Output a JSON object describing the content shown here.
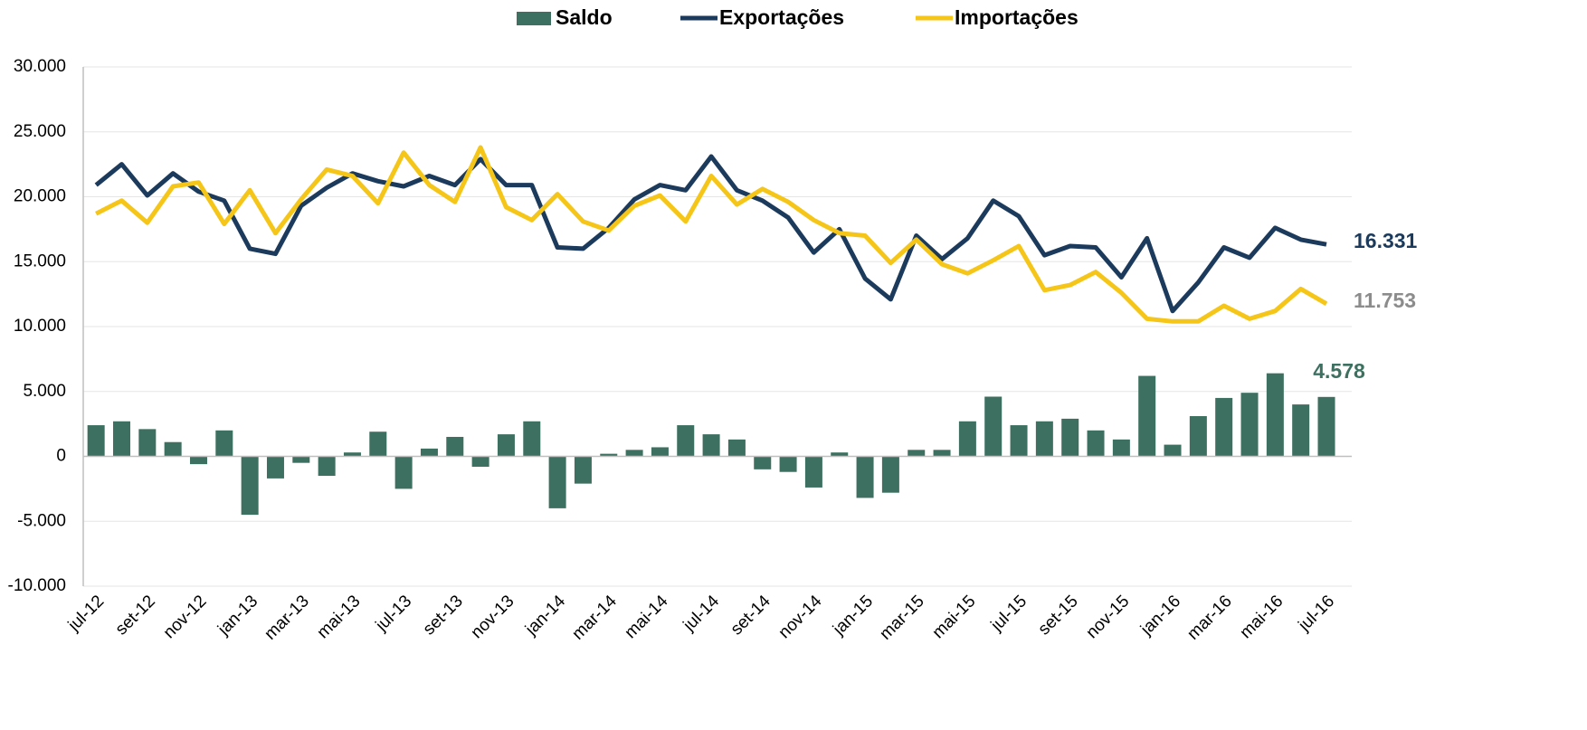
{
  "chart_data": {
    "type": "bar-line",
    "categories": [
      "jul-12",
      null,
      "set-12",
      null,
      "nov-12",
      null,
      "jan-13",
      null,
      "mar-13",
      null,
      "mai-13",
      null,
      "jul-13",
      null,
      "set-13",
      null,
      "nov-13",
      null,
      "jan-14",
      null,
      "mar-14",
      null,
      "mai-14",
      null,
      "jul-14",
      null,
      "set-14",
      null,
      "nov-14",
      null,
      "jan-15",
      null,
      "mar-15",
      null,
      "mai-15",
      null,
      "jul-15",
      null,
      "set-15",
      null,
      "nov-15",
      null,
      "jan-16",
      null,
      "mar-16",
      null,
      "mai-16",
      null,
      "jul-16"
    ],
    "series": [
      {
        "name": "Saldo",
        "type": "bar",
        "color": "#3d7060",
        "values": [
          2400,
          2700,
          2100,
          1100,
          -600,
          2000,
          -4500,
          -1700,
          -500,
          -1500,
          300,
          1900,
          -2500,
          600,
          1500,
          -800,
          1700,
          2700,
          -4000,
          -2100,
          200,
          500,
          700,
          2400,
          1700,
          1300,
          -1000,
          -1200,
          -2400,
          300,
          -3200,
          -2800,
          500,
          500,
          2700,
          4600,
          2400,
          2700,
          2900,
          2000,
          1300,
          6200,
          900,
          3100,
          4500,
          4900,
          6400,
          4000,
          4578
        ],
        "value_labels": [
          null,
          null,
          null,
          null,
          null,
          null,
          null,
          null,
          null,
          null,
          null,
          null,
          null,
          null,
          null,
          null,
          null,
          null,
          null,
          null,
          null,
          null,
          null,
          null,
          null,
          null,
          null,
          null,
          null,
          null,
          null,
          null,
          null,
          null,
          null,
          null,
          null,
          null,
          null,
          null,
          null,
          null,
          null,
          null,
          null,
          null,
          null,
          null,
          "4.578"
        ]
      },
      {
        "name": "Exportações",
        "type": "line",
        "color": "#1b3a5c",
        "values": [
          20900,
          22500,
          20100,
          21800,
          20400,
          19700,
          16000,
          15600,
          19300,
          20700,
          21800,
          21200,
          20800,
          21600,
          20900,
          22900,
          20900,
          20900,
          16100,
          16000,
          17600,
          19800,
          20900,
          20500,
          23100,
          20500,
          19700,
          18400,
          15700,
          17500,
          13700,
          12100,
          17000,
          15200,
          16800,
          19700,
          18500,
          15500,
          16200,
          16100,
          13800,
          16800,
          11200,
          13400,
          16100,
          15300,
          17600,
          16700,
          16331
        ],
        "value_labels": [
          null,
          null,
          null,
          null,
          null,
          null,
          null,
          null,
          null,
          null,
          null,
          null,
          null,
          null,
          null,
          null,
          null,
          null,
          null,
          null,
          null,
          null,
          null,
          null,
          null,
          null,
          null,
          null,
          null,
          null,
          null,
          null,
          null,
          null,
          null,
          null,
          null,
          null,
          null,
          null,
          null,
          null,
          null,
          null,
          null,
          null,
          null,
          null,
          "16.331"
        ]
      },
      {
        "name": "Importações",
        "type": "line",
        "color": "#f5c518",
        "values": [
          18700,
          19700,
          18000,
          20800,
          21100,
          17900,
          20500,
          17200,
          19800,
          22100,
          21600,
          19500,
          23400,
          20900,
          19600,
          23800,
          19200,
          18200,
          20200,
          18100,
          17400,
          19300,
          20100,
          18100,
          21600,
          19400,
          20600,
          19600,
          18200,
          17200,
          17000,
          14900,
          16700,
          14800,
          14100,
          15100,
          16200,
          12800,
          13200,
          14200,
          12600,
          10600,
          10400,
          10400,
          11600,
          10600,
          11200,
          12900,
          11753
        ],
        "value_labels": [
          null,
          null,
          null,
          null,
          null,
          null,
          null,
          null,
          null,
          null,
          null,
          null,
          null,
          null,
          null,
          null,
          null,
          null,
          null,
          null,
          null,
          null,
          null,
          null,
          null,
          null,
          null,
          null,
          null,
          null,
          null,
          null,
          null,
          null,
          null,
          null,
          null,
          null,
          null,
          null,
          null,
          null,
          null,
          null,
          null,
          null,
          null,
          null,
          "11.753"
        ]
      }
    ],
    "ylim": [
      -10000,
      30000
    ],
    "yticks": [
      {
        "value": -10000,
        "label": "-10.000"
      },
      {
        "value": -5000,
        "label": "-5.000"
      },
      0,
      {
        "value": 5000,
        "label": "5.000"
      },
      {
        "value": 10000,
        "label": "10.000"
      },
      {
        "value": 15000,
        "label": "15.000"
      },
      {
        "value": 20000,
        "label": "20.000"
      },
      {
        "value": 25000,
        "label": "25.000"
      },
      {
        "value": 30000,
        "label": "30.000"
      }
    ],
    "grid": true,
    "legend": "top"
  }
}
